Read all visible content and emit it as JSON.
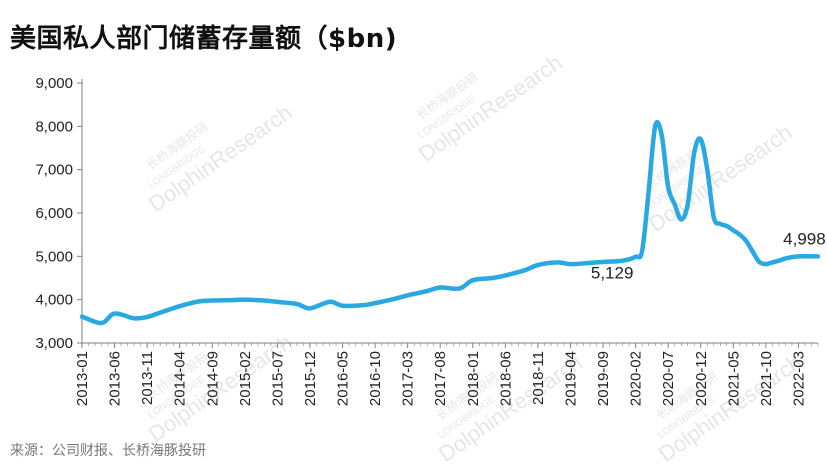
{
  "title": "美国私人部门储蓄存量额（$bn)",
  "source": "来源：公司财报、长桥海豚投研",
  "watermark": {
    "brand": "DolphinResearch",
    "cn": "长桥海豚投研",
    "en": "LONGBRIDGE"
  },
  "colors": {
    "line": "#29a9e1",
    "axis": "#7f7f7f",
    "text": "#222222"
  },
  "chart_data": {
    "type": "line",
    "title": "美国私人部门储蓄存量额（$bn)",
    "xlabel": "",
    "ylabel": "",
    "ylim": [
      3000,
      9000
    ],
    "yticks": [
      3000,
      4000,
      5000,
      6000,
      7000,
      8000,
      9000
    ],
    "ytick_labels": [
      "3,000",
      "4,000",
      "5,000",
      "6,000",
      "7,000",
      "8,000",
      "9,000"
    ],
    "xtick_labels": [
      "2013-01",
      "2013-06",
      "2013-11",
      "2014-04",
      "2014-09",
      "2015-02",
      "2015-07",
      "2015-12",
      "2016-05",
      "2016-10",
      "2017-03",
      "2017-08",
      "2018-01",
      "2018-06",
      "2018-11",
      "2019-04",
      "2019-09",
      "2020-02",
      "2020-07",
      "2020-12",
      "2021-05",
      "2021-10",
      "2022-03"
    ],
    "grid": false,
    "legend": "none",
    "x": [
      "2013-01",
      "2013-04",
      "2013-06",
      "2013-09",
      "2013-11",
      "2014-01",
      "2014-04",
      "2014-07",
      "2014-09",
      "2014-12",
      "2015-02",
      "2015-05",
      "2015-07",
      "2015-10",
      "2015-12",
      "2016-03",
      "2016-05",
      "2016-08",
      "2016-10",
      "2017-01",
      "2017-03",
      "2017-06",
      "2017-08",
      "2017-11",
      "2018-01",
      "2018-04",
      "2018-06",
      "2018-09",
      "2018-11",
      "2019-02",
      "2019-04",
      "2019-07",
      "2019-09",
      "2019-12",
      "2020-02",
      "2020-03",
      "2020-04",
      "2020-05",
      "2020-06",
      "2020-07",
      "2020-08",
      "2020-09",
      "2020-10",
      "2020-11",
      "2020-12",
      "2021-01",
      "2021-02",
      "2021-03",
      "2021-04",
      "2021-05",
      "2021-06",
      "2021-07",
      "2021-08",
      "2021-09",
      "2021-10",
      "2021-11",
      "2021-12",
      "2022-01",
      "2022-03",
      "2022-06"
    ],
    "series": [
      {
        "values": [
          3610,
          3460,
          3680,
          3570,
          3600,
          3700,
          3850,
          3960,
          3980,
          3990,
          4000,
          3980,
          3950,
          3900,
          3800,
          3950,
          3860,
          3870,
          3920,
          4020,
          4100,
          4200,
          4280,
          4260,
          4450,
          4500,
          4560,
          4680,
          4800,
          4860,
          4820,
          4850,
          4870,
          4900,
          4990,
          5129,
          6500,
          8000,
          7800,
          6600,
          6200,
          5850,
          6200,
          7400,
          7700,
          7000,
          5900,
          5750,
          5700,
          5600,
          5500,
          5350,
          5100,
          4870,
          4820,
          4860,
          4900,
          4950,
          4998,
          4998
        ]
      }
    ],
    "annotations": [
      {
        "label": "5,129",
        "x": "2020-03",
        "y": 5129
      },
      {
        "label": "4,998",
        "x": "2022-03",
        "y": 4998
      }
    ]
  }
}
